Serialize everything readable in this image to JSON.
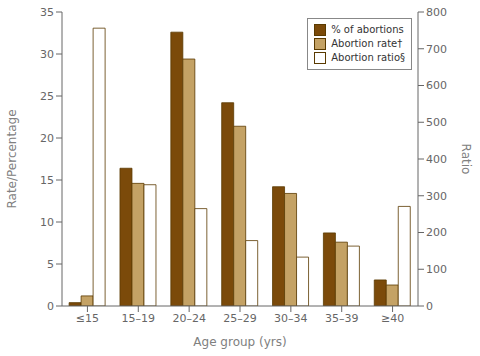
{
  "chart_data": {
    "type": "bar",
    "categories": [
      "≤15",
      "15–19",
      "20–24",
      "25–29",
      "30–34",
      "35–39",
      "≥40"
    ],
    "series": [
      {
        "name": "% of abortions",
        "color": "#7B4A0A",
        "values": [
          0.4,
          16.4,
          32.6,
          24.2,
          14.2,
          8.7,
          3.1
        ]
      },
      {
        "name": "Abortion rate†",
        "color": "#C4A265",
        "values": [
          1.2,
          14.6,
          29.4,
          21.4,
          13.4,
          7.6,
          2.5
        ]
      },
      {
        "name": "Abortion ratio§",
        "color": "#FFFFFF",
        "values": [
          756,
          330,
          265,
          178,
          133,
          163,
          271
        ],
        "axis": "y2"
      }
    ],
    "xlabel": "Age group (yrs)",
    "ylabel": "Rate/Percentage",
    "y2label": "Ratio",
    "ylim": [
      0,
      35
    ],
    "yticks": [
      0,
      5,
      10,
      15,
      20,
      25,
      30,
      35
    ],
    "y2lim": [
      0,
      800
    ],
    "y2ticks": [
      0,
      100,
      200,
      300,
      400,
      500,
      600,
      700,
      800
    ],
    "grid": false,
    "legend": "upper right"
  }
}
